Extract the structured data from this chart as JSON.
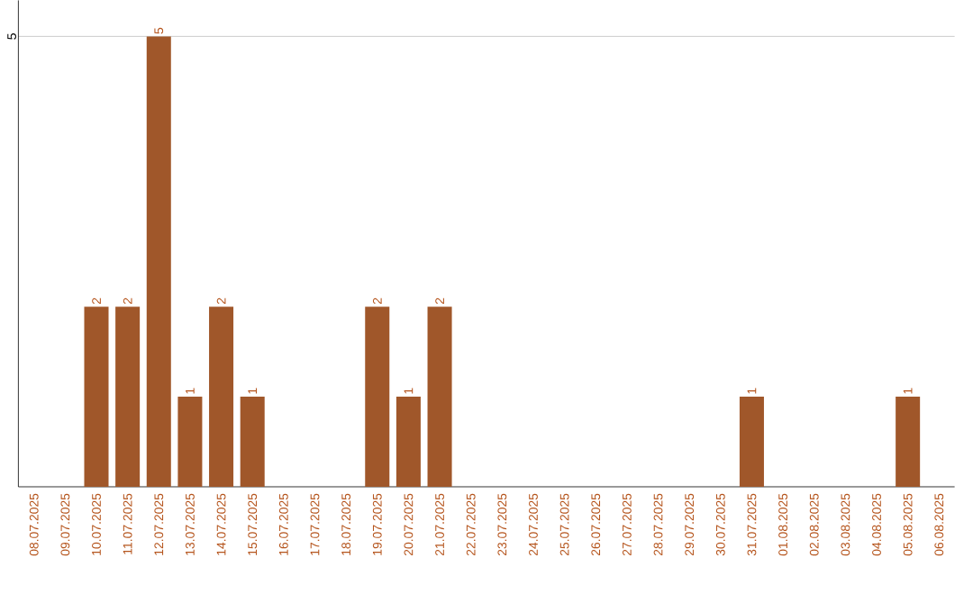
{
  "chart_data": {
    "type": "bar",
    "categories": [
      "08.07.2025",
      "09.07.2025",
      "10.07.2025",
      "11.07.2025",
      "12.07.2025",
      "13.07.2025",
      "14.07.2025",
      "15.07.2025",
      "16.07.2025",
      "17.07.2025",
      "18.07.2025",
      "19.07.2025",
      "20.07.2025",
      "21.07.2025",
      "22.07.2025",
      "23.07.2025",
      "24.07.2025",
      "25.07.2025",
      "26.07.2025",
      "27.07.2025",
      "28.07.2025",
      "29.07.2025",
      "30.07.2025",
      "31.07.2025",
      "01.08.2025",
      "02.08.2025",
      "03.08.2025",
      "04.08.2025",
      "05.08.2025",
      "06.08.2025"
    ],
    "values": [
      0,
      0,
      2,
      2,
      5,
      1,
      2,
      1,
      0,
      0,
      0,
      2,
      1,
      2,
      0,
      0,
      0,
      0,
      0,
      0,
      0,
      0,
      0,
      1,
      0,
      0,
      0,
      0,
      1,
      0
    ],
    "value_labels": [
      null,
      null,
      "2",
      "2",
      "5",
      "1",
      "2",
      "1",
      null,
      null,
      null,
      "2",
      "1",
      "2",
      null,
      null,
      null,
      null,
      null,
      null,
      null,
      null,
      null,
      "1",
      null,
      null,
      null,
      null,
      "1",
      null
    ],
    "color": "#a0572a",
    "ylim": [
      0,
      5.4
    ],
    "yticks": [
      5
    ],
    "grid": "y"
  }
}
